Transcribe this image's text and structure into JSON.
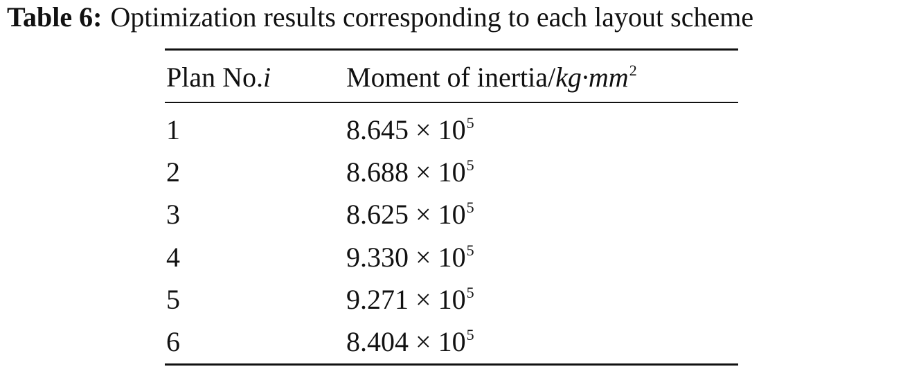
{
  "caption": {
    "label": "Table 6:",
    "text": "Optimization results corresponding to each layout scheme"
  },
  "table": {
    "headers": {
      "plan_prefix": "Plan No.",
      "plan_var": "i",
      "moment_prefix": "Moment of inertia/",
      "moment_unit": "kg·mm",
      "moment_unit_exp": "2"
    },
    "rows": [
      {
        "plan": "1",
        "mantissa": "8.645",
        "times": "×",
        "base": "10",
        "exp": "5"
      },
      {
        "plan": "2",
        "mantissa": "8.688",
        "times": "×",
        "base": "10",
        "exp": "5"
      },
      {
        "plan": "3",
        "mantissa": "8.625",
        "times": "×",
        "base": "10",
        "exp": "5"
      },
      {
        "plan": "4",
        "mantissa": "9.330",
        "times": "×",
        "base": "10",
        "exp": "5"
      },
      {
        "plan": "5",
        "mantissa": "9.271",
        "times": "×",
        "base": "10",
        "exp": "5"
      },
      {
        "plan": "6",
        "mantissa": "8.404",
        "times": "×",
        "base": "10",
        "exp": "5"
      }
    ]
  }
}
